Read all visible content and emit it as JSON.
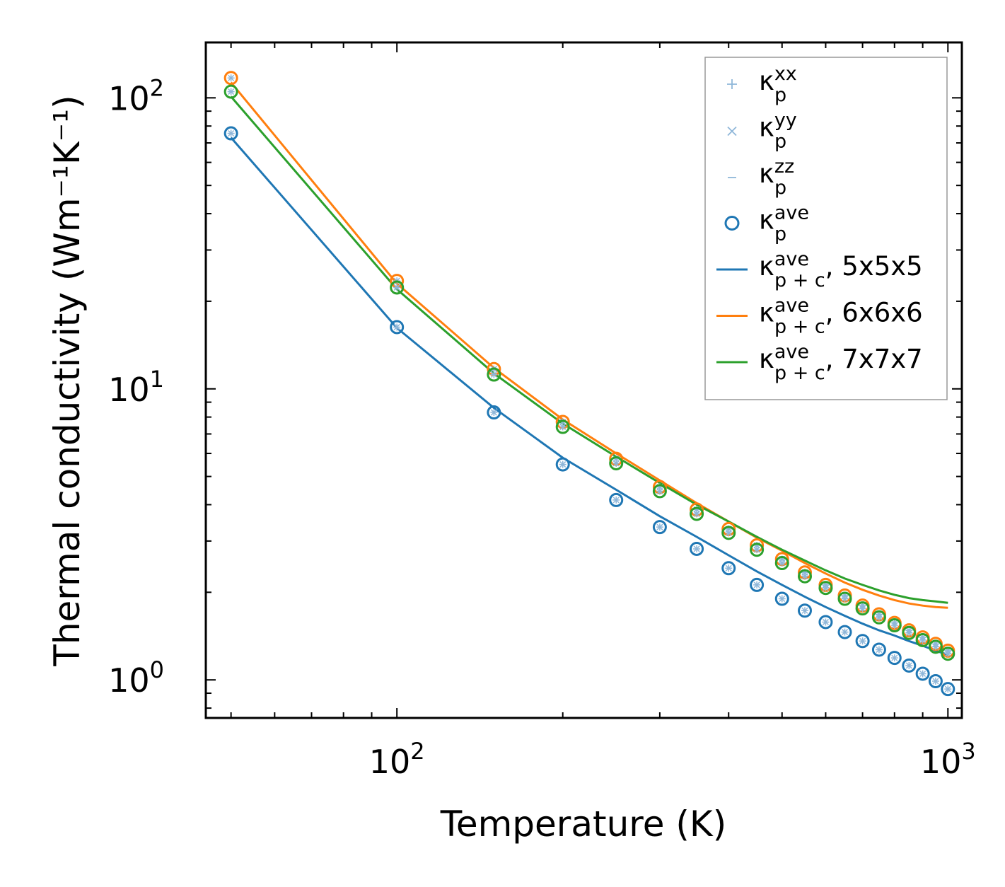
{
  "chart_data": {
    "type": "scatter",
    "x_scale": "log",
    "y_scale": "log",
    "xlabel": "Temperature (K)",
    "ylabel": "Thermal conductivity (Wm⁻¹K⁻¹)",
    "xlim": [
      45,
      1060
    ],
    "ylim": [
      0.74,
      155
    ],
    "x_ticks": [
      {
        "value": 100,
        "base": "10",
        "exp": "2"
      },
      {
        "value": 1000,
        "base": "10",
        "exp": "3"
      }
    ],
    "y_ticks": [
      {
        "value": 1,
        "base": "10",
        "exp": "0"
      },
      {
        "value": 10,
        "base": "10",
        "exp": "1"
      },
      {
        "value": 100,
        "base": "10",
        "exp": "2"
      }
    ],
    "temperatures": [
      50,
      100,
      150,
      200,
      250,
      300,
      350,
      400,
      450,
      500,
      550,
      600,
      650,
      700,
      750,
      800,
      850,
      900,
      950,
      1000
    ],
    "series": [
      {
        "name": "κp ave 5x5x5",
        "kind": "markers",
        "color": "#1f77b4",
        "values": [
          75.5,
          16.3,
          8.3,
          5.5,
          4.15,
          3.35,
          2.82,
          2.42,
          2.12,
          1.9,
          1.73,
          1.58,
          1.46,
          1.36,
          1.27,
          1.19,
          1.12,
          1.05,
          0.99,
          0.93
        ]
      },
      {
        "name": "κp ave 6x6x6",
        "kind": "markers",
        "color": "#ff7f0e",
        "values": [
          117,
          23.5,
          11.7,
          7.7,
          5.75,
          4.6,
          3.85,
          3.3,
          2.9,
          2.6,
          2.34,
          2.12,
          1.95,
          1.8,
          1.68,
          1.57,
          1.48,
          1.4,
          1.33,
          1.26
        ]
      },
      {
        "name": "κp ave 7x7x7",
        "kind": "markers",
        "color": "#2ca02c",
        "values": [
          105,
          22.3,
          11.2,
          7.4,
          5.55,
          4.45,
          3.72,
          3.2,
          2.8,
          2.52,
          2.27,
          2.07,
          1.9,
          1.76,
          1.64,
          1.54,
          1.45,
          1.37,
          1.3,
          1.23
        ]
      },
      {
        "name": "κp+c ave, 5x5x5",
        "kind": "line",
        "color": "#1f77b4",
        "values": [
          73,
          16.2,
          8.6,
          5.8,
          4.5,
          3.65,
          3.1,
          2.68,
          2.36,
          2.12,
          1.93,
          1.78,
          1.66,
          1.56,
          1.48,
          1.42,
          1.36,
          1.31,
          1.26,
          1.22
        ]
      },
      {
        "name": "κp+c ave, 6x6x6",
        "kind": "line",
        "color": "#ff7f0e",
        "values": [
          113,
          23.0,
          11.8,
          7.85,
          6.0,
          4.85,
          4.05,
          3.5,
          3.08,
          2.78,
          2.52,
          2.32,
          2.16,
          2.04,
          1.95,
          1.88,
          1.83,
          1.8,
          1.78,
          1.77
        ]
      },
      {
        "name": "κp+c ave, 7x7x7",
        "kind": "line",
        "color": "#2ca02c",
        "values": [
          101,
          22.0,
          11.3,
          7.6,
          5.85,
          4.75,
          4.0,
          3.5,
          3.1,
          2.8,
          2.57,
          2.38,
          2.23,
          2.12,
          2.03,
          1.96,
          1.91,
          1.88,
          1.86,
          1.84
        ]
      }
    ],
    "legend": {
      "position": "top-right",
      "entries": [
        {
          "symbol": "+",
          "kappa": "κ",
          "sub": "p",
          "sup": "xx",
          "suffix": "",
          "color": "#8fb7d9"
        },
        {
          "symbol": "×",
          "kappa": "κ",
          "sub": "p",
          "sup": "yy",
          "suffix": "",
          "color": "#8fb7d9"
        },
        {
          "symbol": "−",
          "kappa": "κ",
          "sub": "p",
          "sup": "zz",
          "suffix": "",
          "color": "#8fb7d9"
        },
        {
          "symbol": "o",
          "kappa": "κ",
          "sub": "p",
          "sup": "ave",
          "suffix": "",
          "color": "#1f77b4"
        },
        {
          "symbol": "line",
          "kappa": "κ",
          "sub": "p + c",
          "sup": "ave",
          "suffix": ", 5x5x5",
          "color": "#1f77b4"
        },
        {
          "symbol": "line",
          "kappa": "κ",
          "sub": "p + c",
          "sup": "ave",
          "suffix": ", 6x6x6",
          "color": "#ff7f0e"
        },
        {
          "symbol": "line",
          "kappa": "κ",
          "sub": "p + c",
          "sup": "ave",
          "suffix": ", 7x7x7",
          "color": "#2ca02c"
        }
      ]
    }
  }
}
